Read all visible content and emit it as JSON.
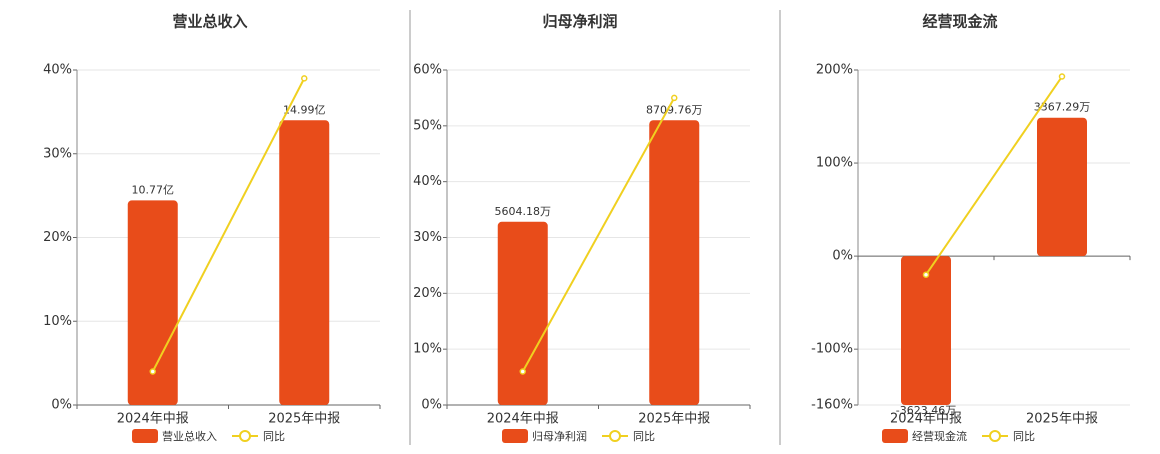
{
  "chart_data": [
    {
      "type": "bar-line",
      "title": "营业总收入",
      "categories": [
        "2024年中报",
        "2025年中报"
      ],
      "series": [
        {
          "name": "营业总收入",
          "color": "#e84c1a",
          "values": [
            10.77,
            14.99
          ],
          "value_labels": [
            "10.77亿",
            "14.99亿"
          ]
        },
        {
          "name": "同比",
          "color": "#f0d020",
          "values": [
            4,
            39
          ]
        }
      ],
      "ylim": [
        0,
        40
      ],
      "yticks": [
        {
          "value": 0,
          "label": "0%"
        },
        {
          "value": 10,
          "label": "10%"
        },
        {
          "value": 20,
          "label": "20%"
        },
        {
          "value": 30,
          "label": "30%"
        },
        {
          "value": 40,
          "label": "40%"
        }
      ],
      "grid": true
    },
    {
      "type": "bar-line",
      "title": "归母净利润",
      "categories": [
        "2024年中报",
        "2025年中报"
      ],
      "series": [
        {
          "name": "归母净利润",
          "color": "#e84c1a",
          "values": [
            5604.18,
            8709.76
          ],
          "value_labels": [
            "5604.18万",
            "8709.76万"
          ]
        },
        {
          "name": "同比",
          "color": "#f0d020",
          "values": [
            6,
            55
          ]
        }
      ],
      "ylim": [
        0,
        60
      ],
      "yticks": [
        {
          "value": 0,
          "label": "0%"
        },
        {
          "value": 10,
          "label": "10%"
        },
        {
          "value": 20,
          "label": "20%"
        },
        {
          "value": 30,
          "label": "30%"
        },
        {
          "value": 40,
          "label": "40%"
        },
        {
          "value": 50,
          "label": "50%"
        },
        {
          "value": 60,
          "label": "60%"
        }
      ],
      "grid": true
    },
    {
      "type": "bar-line",
      "title": "经营现金流",
      "categories": [
        "2024年中报",
        "2025年中报"
      ],
      "series": [
        {
          "name": "经营现金流",
          "color": "#e84c1a",
          "values": [
            -3623.46,
            3367.29
          ],
          "value_labels": [
            "-3623.46万",
            "3367.29万"
          ]
        },
        {
          "name": "同比",
          "color": "#f0d020",
          "values": [
            -20,
            193
          ]
        }
      ],
      "ylim": [
        -160,
        200
      ],
      "yticks": [
        {
          "value": -160,
          "label": "-160%"
        },
        {
          "value": -100,
          "label": "-100%"
        },
        {
          "value": 0,
          "label": "0%"
        },
        {
          "value": 100,
          "label": "100%"
        },
        {
          "value": 200,
          "label": "200%"
        }
      ],
      "grid": true
    }
  ]
}
